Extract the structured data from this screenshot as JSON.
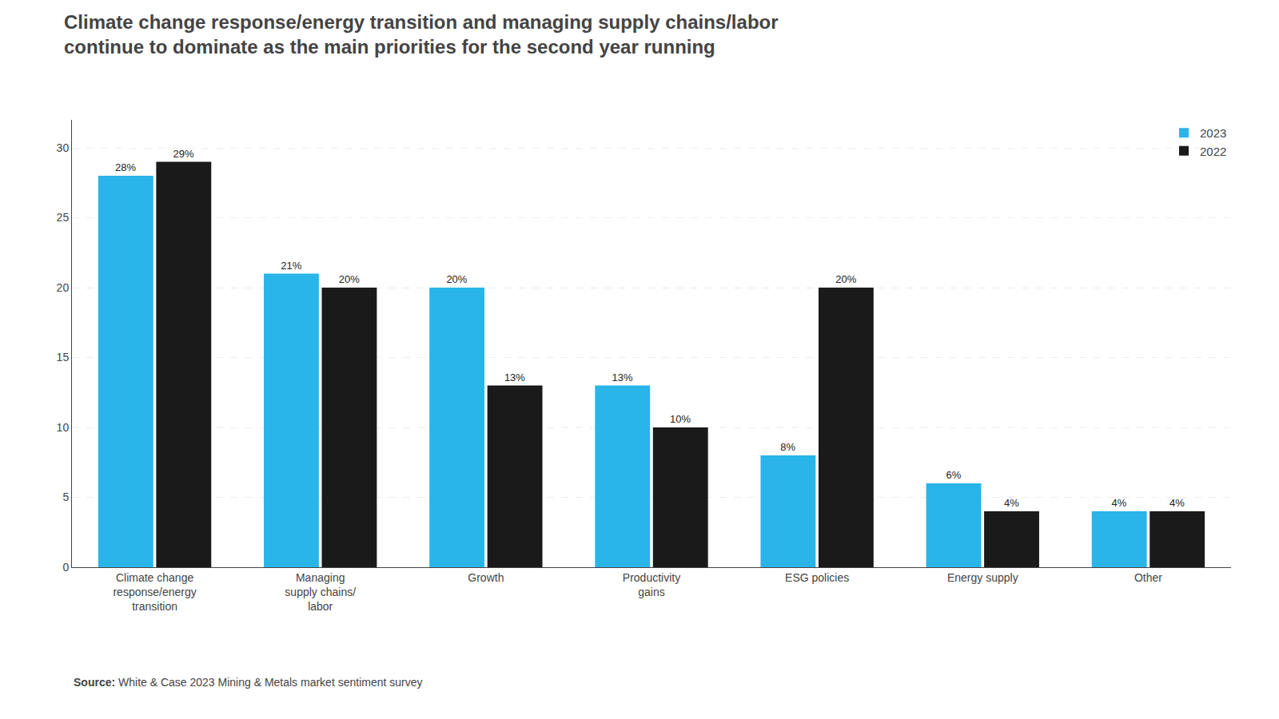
{
  "chart_data": {
    "type": "bar",
    "title": "Climate change response/energy transition and managing supply chains/labor\ncontinue to dominate as the main priorities for the second year running",
    "categories": [
      "Climate change\nresponse/energy\ntransition",
      "Managing\nsupply chains/\nlabor",
      "Growth",
      "Productivity\ngains",
      "ESG policies",
      "Energy supply",
      "Other"
    ],
    "series": [
      {
        "name": "2023",
        "color": "#29b5e8",
        "values": [
          28,
          21,
          20,
          13,
          8,
          6,
          4
        ],
        "value_labels": [
          "28%",
          "21%",
          "20%",
          "13%",
          "8%",
          "6%",
          "4%"
        ]
      },
      {
        "name": "2022",
        "color": "#1a1a1a",
        "values": [
          29,
          20,
          13,
          10,
          20,
          4,
          4
        ],
        "value_labels": [
          "29%",
          "20%",
          "13%",
          "10%",
          "20%",
          "4%",
          "4%"
        ]
      }
    ],
    "ylim": [
      0,
      32
    ],
    "yticks": [
      0,
      5,
      10,
      15,
      20,
      25,
      30
    ],
    "grid": true,
    "legend": "upper right",
    "data_labels": true,
    "annotations": [
      "Source: White & Case 2023 Mining & Metals market sentiment survey"
    ]
  }
}
